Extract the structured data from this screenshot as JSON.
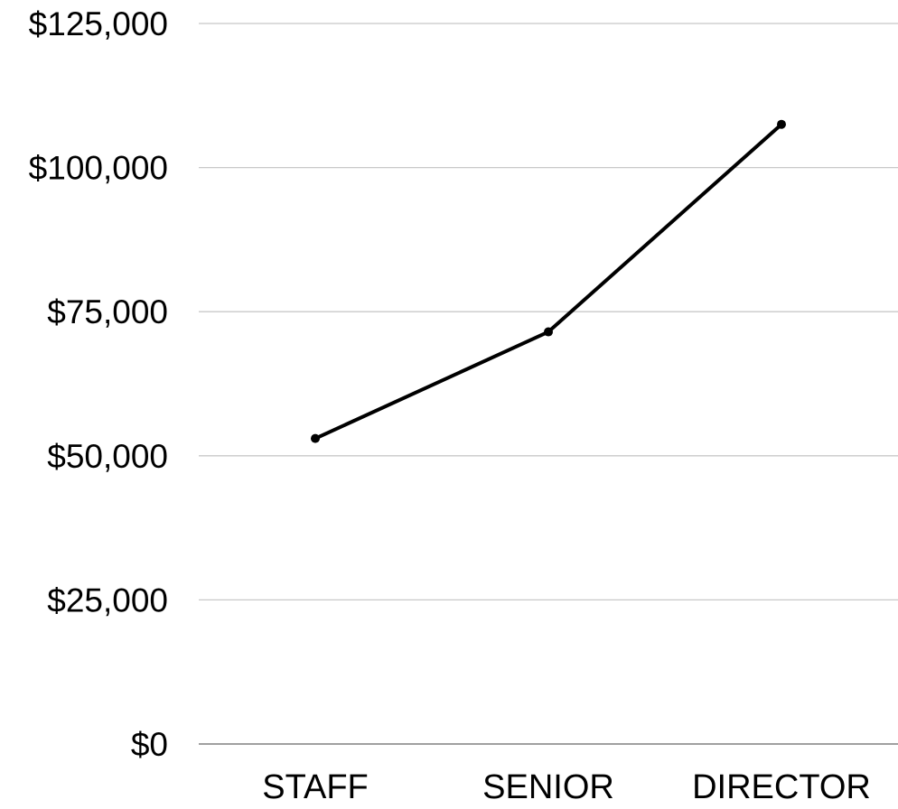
{
  "chart_data": {
    "type": "line",
    "categories": [
      "STAFF",
      "SENIOR",
      "DIRECTOR"
    ],
    "series": [
      {
        "values": [
          53000,
          71500,
          107500
        ]
      }
    ],
    "ylim": [
      0,
      125000
    ],
    "y_ticks": [
      0,
      25000,
      50000,
      75000,
      100000,
      125000
    ],
    "y_tick_labels": [
      "$0",
      "$25,000",
      "$50,000",
      "$75,000",
      "$100,000",
      "$125,000"
    ],
    "grid": true,
    "colors": {
      "line": "#000000",
      "grid": "#c8c8c8",
      "axis": "#808080"
    }
  }
}
